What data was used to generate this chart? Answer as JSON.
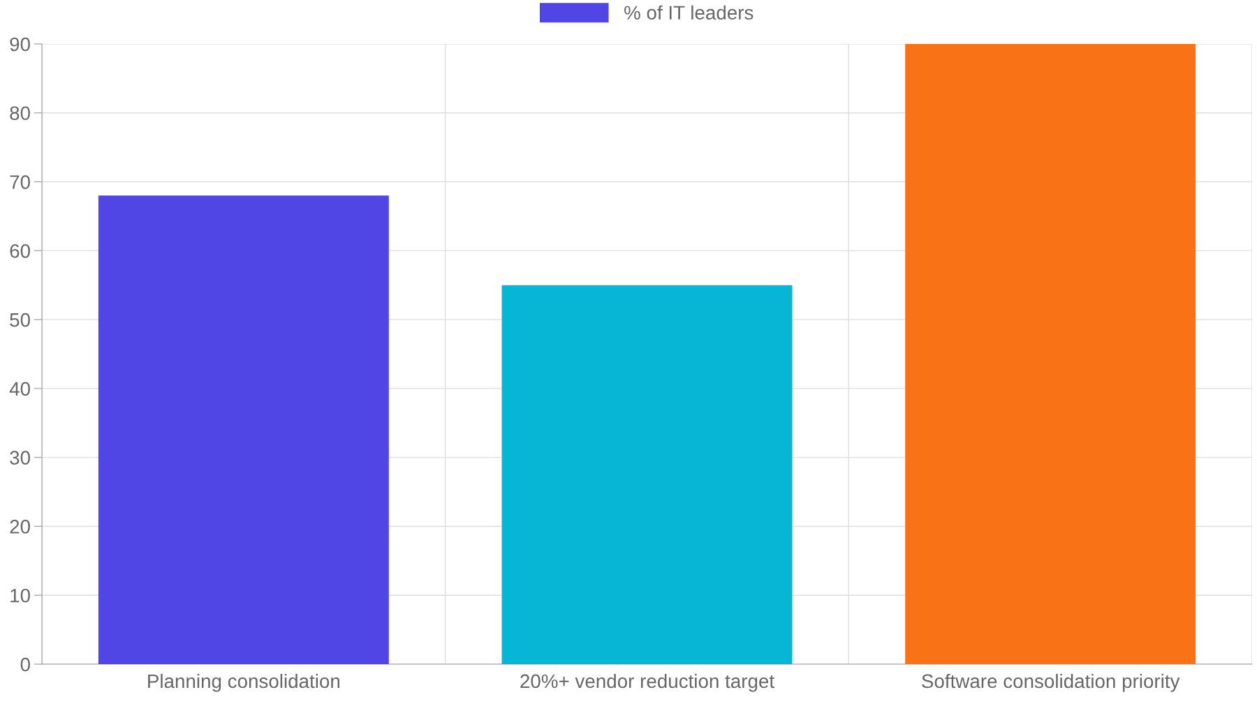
{
  "chart_data": {
    "type": "bar",
    "categories": [
      "Planning consolidation",
      "20%+ vendor reduction target",
      "Software consolidation priority"
    ],
    "series": [
      {
        "name": "% of IT leaders",
        "values": [
          68,
          55,
          90
        ],
        "colors": [
          "#4f46e5",
          "#06b6d4",
          "#f97316"
        ]
      }
    ],
    "ylim": [
      0,
      90
    ],
    "yticks": [
      0,
      10,
      20,
      30,
      40,
      50,
      60,
      70,
      80,
      90
    ],
    "grid": true,
    "legend": "top"
  }
}
